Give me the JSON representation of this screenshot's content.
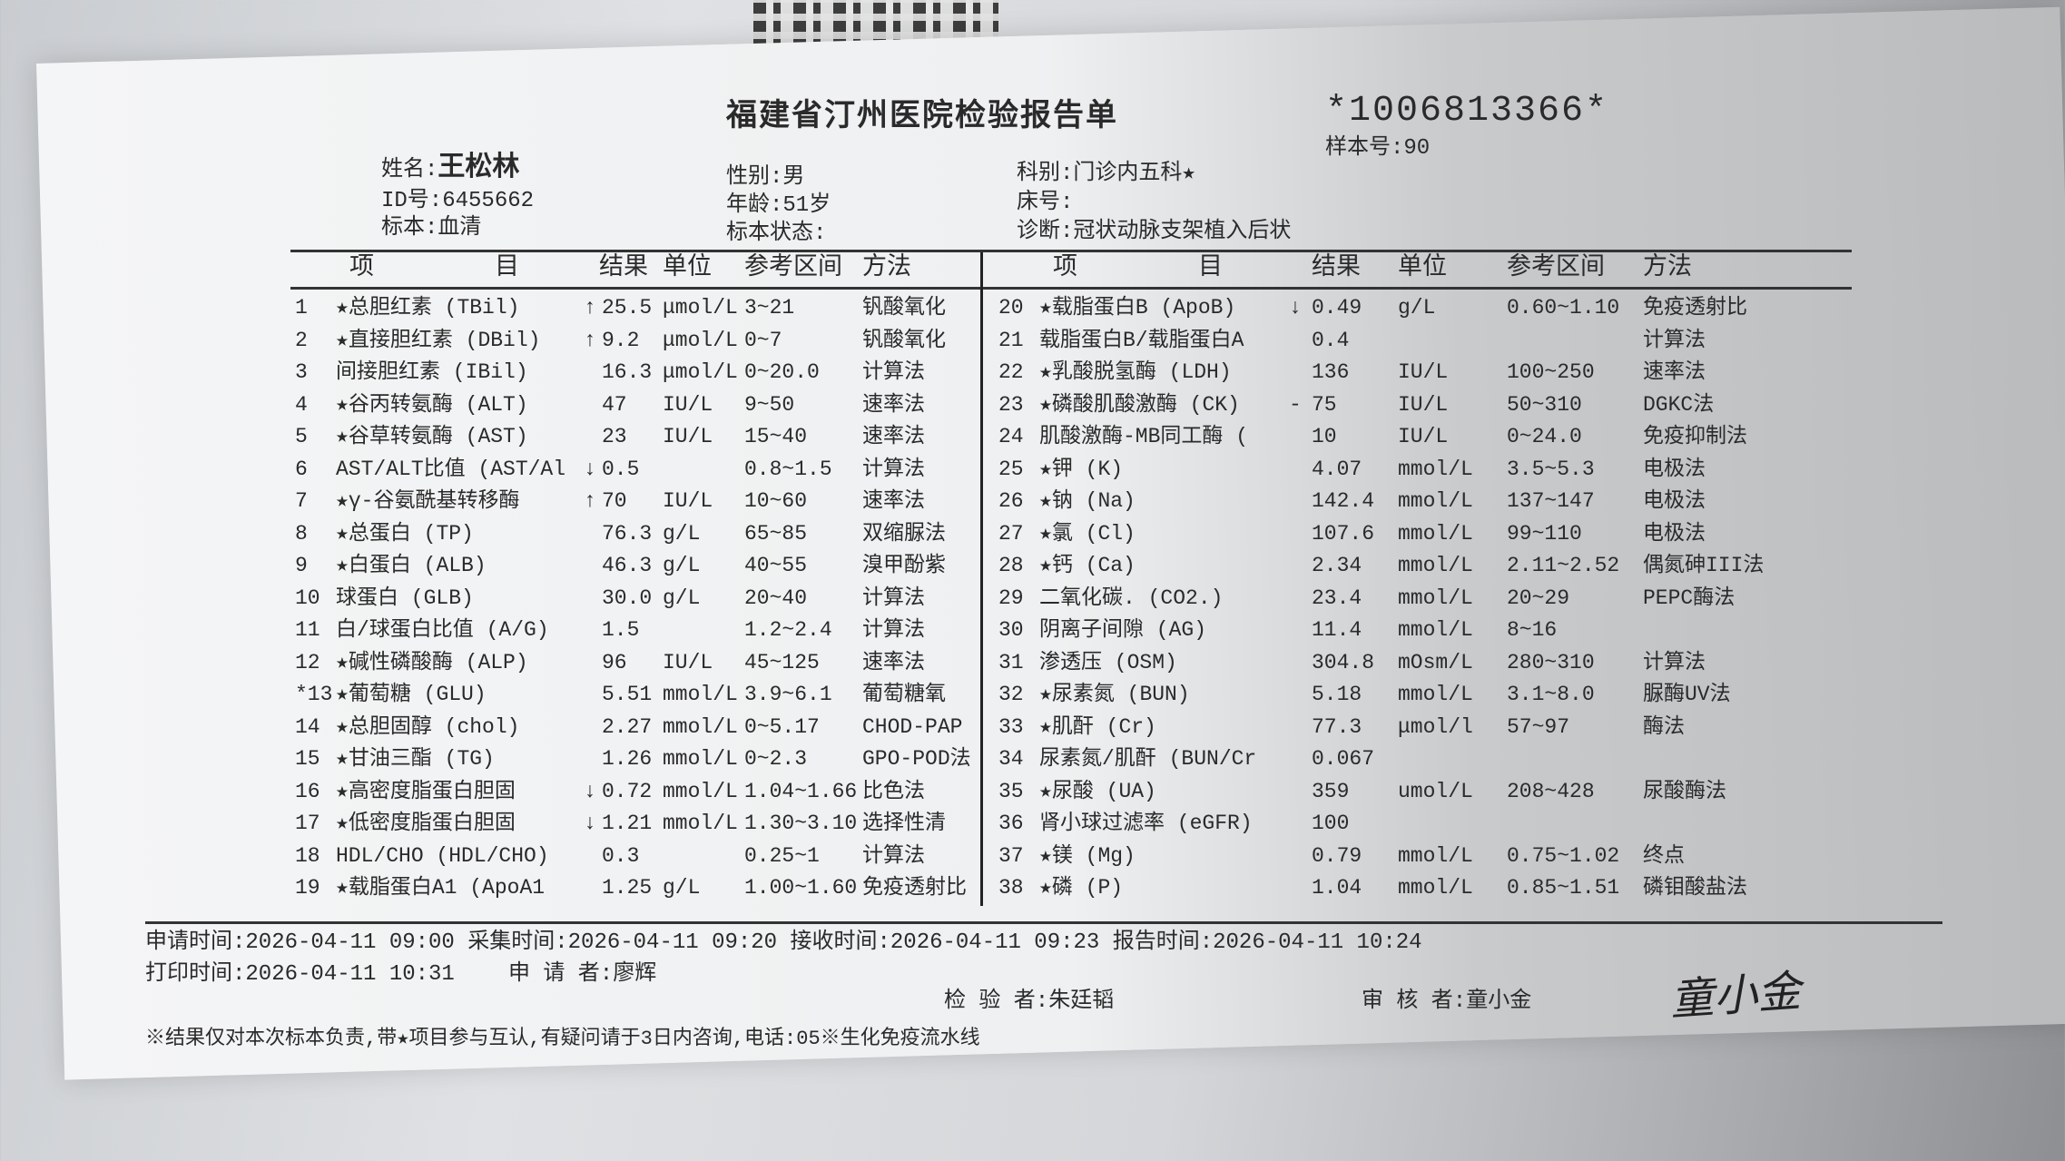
{
  "header": {
    "title": "福建省汀州医院检验报告单",
    "barcode_number": "*1006813366*",
    "name_label": "姓名:",
    "name": "王松林",
    "id_label": "ID号:",
    "id": "6455662",
    "specimen_label": "标本:",
    "specimen": "血清",
    "gender_label": "性别:",
    "gender": "男",
    "age_label": "年龄:",
    "age": "51岁",
    "specimen_status_label": "标本状态:",
    "dept_label": "科别:",
    "dept": "门诊内五科★",
    "sample_no_label": "样本号:",
    "sample_no": "90",
    "bed_label": "床号:",
    "diagnosis_label": "诊断:",
    "diagnosis": "冠状动脉支架植入后状"
  },
  "columns": {
    "item_a": "项",
    "item_b": "目",
    "result": "结果",
    "unit": "单位",
    "ref": "参考区间",
    "method": "方法"
  },
  "left_rows": [
    {
      "no": "1",
      "name": "★总胆红素 (TBil)",
      "flag": "↑",
      "result": "25.5",
      "unit": "μmol/L",
      "ref": "3~21",
      "method": "钒酸氧化"
    },
    {
      "no": "2",
      "name": "★直接胆红素 (DBil)",
      "flag": "↑",
      "result": "9.2",
      "unit": "μmol/L",
      "ref": "0~7",
      "method": "钒酸氧化"
    },
    {
      "no": "3",
      "name": "间接胆红素 (IBil)",
      "flag": "",
      "result": "16.3",
      "unit": "μmol/L",
      "ref": "0~20.0",
      "method": "计算法"
    },
    {
      "no": "4",
      "name": "★谷丙转氨酶 (ALT)",
      "flag": "",
      "result": "47",
      "unit": "IU/L",
      "ref": "9~50",
      "method": "速率法"
    },
    {
      "no": "5",
      "name": "★谷草转氨酶 (AST)",
      "flag": "",
      "result": "23",
      "unit": "IU/L",
      "ref": "15~40",
      "method": "速率法"
    },
    {
      "no": "6",
      "name": "AST/ALT比值 (AST/Al",
      "flag": "↓",
      "result": "0.5",
      "unit": "",
      "ref": "0.8~1.5",
      "method": "计算法"
    },
    {
      "no": "7",
      "name": "★γ-谷氨酰基转移酶",
      "flag": "↑",
      "result": "70",
      "unit": "IU/L",
      "ref": "10~60",
      "method": "速率法"
    },
    {
      "no": "8",
      "name": "★总蛋白 (TP)",
      "flag": "",
      "result": "76.3",
      "unit": "g/L",
      "ref": "65~85",
      "method": "双缩脲法"
    },
    {
      "no": "9",
      "name": "★白蛋白 (ALB)",
      "flag": "",
      "result": "46.3",
      "unit": "g/L",
      "ref": "40~55",
      "method": "溴甲酚紫"
    },
    {
      "no": "10",
      "name": "球蛋白 (GLB)",
      "flag": "",
      "result": "30.0",
      "unit": "g/L",
      "ref": "20~40",
      "method": "计算法"
    },
    {
      "no": "11",
      "name": "白/球蛋白比值 (A/G)",
      "flag": "",
      "result": "1.5",
      "unit": "",
      "ref": "1.2~2.4",
      "method": "计算法"
    },
    {
      "no": "12",
      "name": "★碱性磷酸酶 (ALP)",
      "flag": "",
      "result": "96",
      "unit": "IU/L",
      "ref": "45~125",
      "method": "速率法"
    },
    {
      "no": "*13",
      "name": "★葡萄糖 (GLU)",
      "flag": "",
      "result": "5.51",
      "unit": "mmol/L",
      "ref": "3.9~6.1",
      "method": "葡萄糖氧"
    },
    {
      "no": "14",
      "name": "★总胆固醇 (chol)",
      "flag": "",
      "result": "2.27",
      "unit": "mmol/L",
      "ref": "0~5.17",
      "method": "CHOD-PAP"
    },
    {
      "no": "15",
      "name": "★甘油三酯 (TG)",
      "flag": "",
      "result": "1.26",
      "unit": "mmol/L",
      "ref": "0~2.3",
      "method": "GPO-POD法"
    },
    {
      "no": "16",
      "name": "★高密度脂蛋白胆固",
      "flag": "↓",
      "result": "0.72",
      "unit": "mmol/L",
      "ref": "1.04~1.66",
      "method": "比色法"
    },
    {
      "no": "17",
      "name": "★低密度脂蛋白胆固",
      "flag": "↓",
      "result": "1.21",
      "unit": "mmol/L",
      "ref": "1.30~3.10",
      "method": "选择性清"
    },
    {
      "no": "18",
      "name": "HDL/CHO (HDL/CHO)",
      "flag": "",
      "result": "0.3",
      "unit": "",
      "ref": "0.25~1",
      "method": "计算法"
    },
    {
      "no": "19",
      "name": "★载脂蛋白A1 (ApoA1",
      "flag": "",
      "result": "1.25",
      "unit": "g/L",
      "ref": "1.00~1.60",
      "method": "免疫透射比"
    }
  ],
  "right_rows": [
    {
      "no": "20",
      "name": "★载脂蛋白B (ApoB)",
      "flag": "↓",
      "result": "0.49",
      "unit": "g/L",
      "ref": "0.60~1.10",
      "method": "免疫透射比"
    },
    {
      "no": "21",
      "name": "载脂蛋白B/载脂蛋白A",
      "flag": "",
      "result": "0.4",
      "unit": "",
      "ref": "",
      "method": "计算法"
    },
    {
      "no": "22",
      "name": "★乳酸脱氢酶 (LDH)",
      "flag": "",
      "result": "136",
      "unit": "IU/L",
      "ref": "100~250",
      "method": "速率法"
    },
    {
      "no": "23",
      "name": "★磷酸肌酸激酶 (CK)",
      "flag": "-",
      "result": "75",
      "unit": "IU/L",
      "ref": "50~310",
      "method": "DGKC法"
    },
    {
      "no": "24",
      "name": "肌酸激酶-MB同工酶 (",
      "flag": "",
      "result": "10",
      "unit": "IU/L",
      "ref": "0~24.0",
      "method": "免疫抑制法"
    },
    {
      "no": "25",
      "name": "★钾 (K)",
      "flag": "",
      "result": "4.07",
      "unit": "mmol/L",
      "ref": "3.5~5.3",
      "method": "电极法"
    },
    {
      "no": "26",
      "name": "★钠 (Na)",
      "flag": "",
      "result": "142.4",
      "unit": "mmol/L",
      "ref": "137~147",
      "method": "电极法"
    },
    {
      "no": "27",
      "name": "★氯 (Cl)",
      "flag": "",
      "result": "107.6",
      "unit": "mmol/L",
      "ref": "99~110",
      "method": "电极法"
    },
    {
      "no": "28",
      "name": "★钙 (Ca)",
      "flag": "",
      "result": "2.34",
      "unit": "mmol/L",
      "ref": "2.11~2.52",
      "method": "偶氮砷III法"
    },
    {
      "no": "29",
      "name": "二氧化碳. (CO2.)",
      "flag": "",
      "result": "23.4",
      "unit": "mmol/L",
      "ref": "20~29",
      "method": "PEPC酶法"
    },
    {
      "no": "30",
      "name": "阴离子间隙 (AG)",
      "flag": "",
      "result": "11.4",
      "unit": "mmol/L",
      "ref": "8~16",
      "method": ""
    },
    {
      "no": "31",
      "name": "渗透压 (OSM)",
      "flag": "",
      "result": "304.8",
      "unit": "mOsm/L",
      "ref": "280~310",
      "method": "计算法"
    },
    {
      "no": "32",
      "name": "★尿素氮 (BUN)",
      "flag": "",
      "result": "5.18",
      "unit": "mmol/L",
      "ref": "3.1~8.0",
      "method": "脲酶UV法"
    },
    {
      "no": "33",
      "name": "★肌酐 (Cr)",
      "flag": "",
      "result": "77.3",
      "unit": "μmol/l",
      "ref": "57~97",
      "method": "酶法"
    },
    {
      "no": "34",
      "name": "尿素氮/肌酐 (BUN/Cr",
      "flag": "",
      "result": "0.067",
      "unit": "",
      "ref": "",
      "method": ""
    },
    {
      "no": "35",
      "name": "★尿酸 (UA)",
      "flag": "",
      "result": "359",
      "unit": "umol/L",
      "ref": "208~428",
      "method": "尿酸酶法"
    },
    {
      "no": "36",
      "name": "肾小球过滤率 (eGFR)",
      "flag": "",
      "result": "100",
      "unit": "",
      "ref": "",
      "method": ""
    },
    {
      "no": "37",
      "name": "★镁 (Mg)",
      "flag": "",
      "result": "0.79",
      "unit": "mmol/L",
      "ref": "0.75~1.02",
      "method": "终点"
    },
    {
      "no": "38",
      "name": "★磷 (P)",
      "flag": "",
      "result": "1.04",
      "unit": "mmol/L",
      "ref": "0.85~1.51",
      "method": "磷钼酸盐法"
    }
  ],
  "footer": {
    "line1": "申请时间:2026-04-11 09:00 采集时间:2026-04-11 09:20 接收时间:2026-04-11 09:23 报告时间:2026-04-11 10:24",
    "print_time": "打印时间:2026-04-11 10:31",
    "requester": "申 请 者:廖辉",
    "tester": "检 验 者:朱廷韬",
    "reviewer": "审 核 者:童小金",
    "note": "※结果仅对本次标本负责,带★项目参与互认,有疑问请于3日内咨询,电话:05※生化免疫流水线",
    "signature": "童小金"
  }
}
